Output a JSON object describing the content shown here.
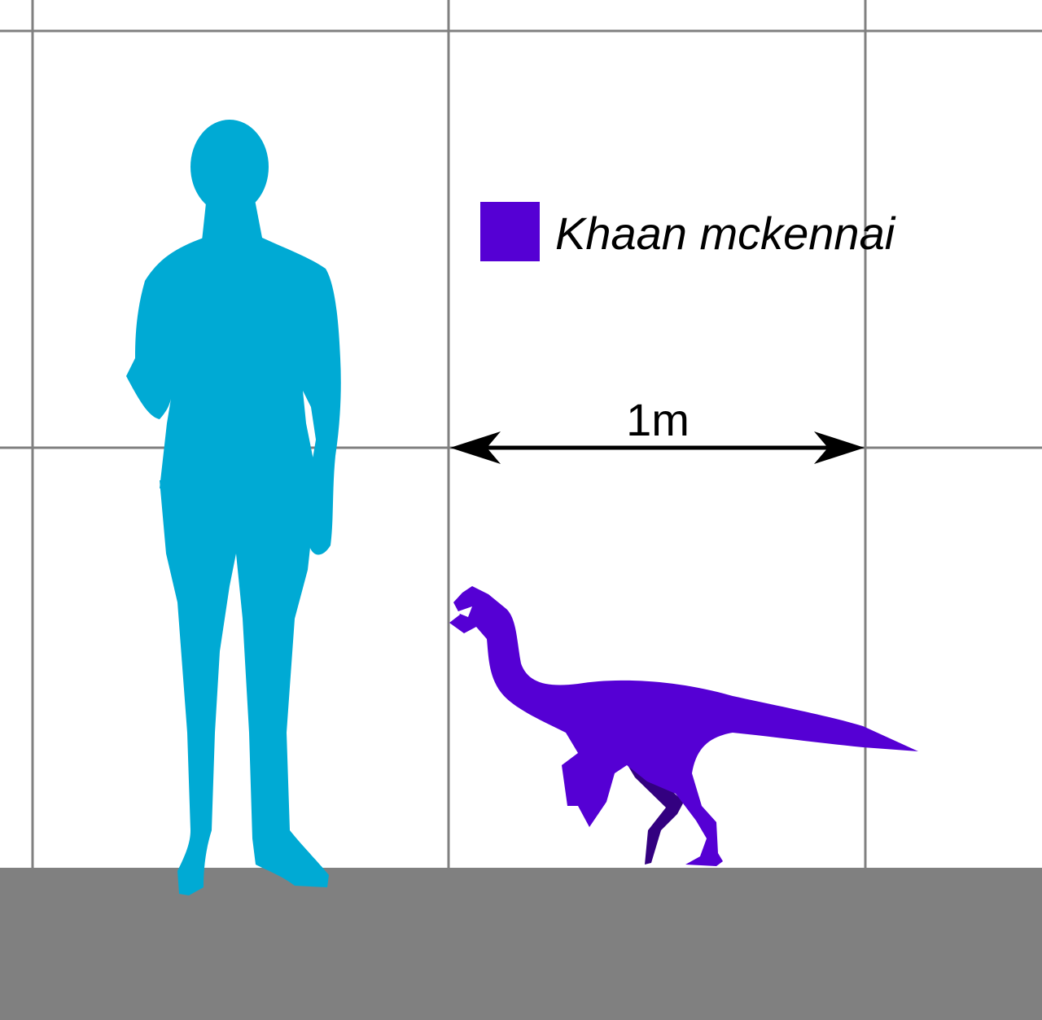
{
  "figure": {
    "scale_label": "1m",
    "legend": {
      "species": "Khaan mckennai",
      "color": "#5500d4"
    },
    "human_color": "#00aad4",
    "dinosaur_color": "#5500d4",
    "dinosaur_shadow_color": "#330080",
    "ground_color": "#808080",
    "grid_color": "#808080"
  }
}
